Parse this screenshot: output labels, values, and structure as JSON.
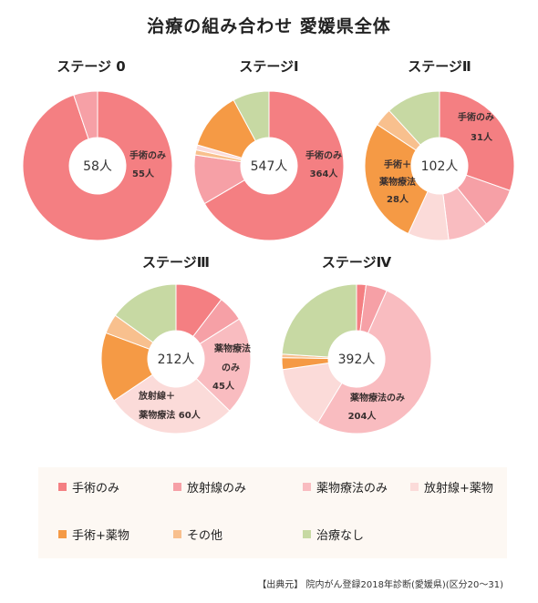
{
  "title": "治療の組み合わせ 愛媛県全体",
  "colors": {
    "手術のみ": "#f47f82",
    "放射線のみ": "#f6a0a6",
    "薬物療法のみ": "#f9bcc0",
    "放射線+薬物": "#fbdbd9",
    "手術+薬物": "#f59a45",
    "その他": "#f8c08e",
    "治療なし": "#c7d9a3"
  },
  "legend": [
    {
      "key": "手術のみ",
      "label": "手術のみ"
    },
    {
      "key": "放射線のみ",
      "label": "放射線のみ"
    },
    {
      "key": "薬物療法のみ",
      "label": "薬物療法のみ"
    },
    {
      "key": "放射線+薬物",
      "label": "放射線+薬物"
    },
    {
      "key": "手術+薬物",
      "label": "手術+薬物"
    },
    {
      "key": "その他",
      "label": "その他"
    },
    {
      "key": "治療なし",
      "label": "治療なし"
    }
  ],
  "source": "【出典元】 院内がん登録2018年診断(愛媛県)(区分20～31)",
  "chart_data": [
    {
      "type": "pie",
      "title": "ステージ 0",
      "total_label": "58人",
      "slices": [
        {
          "key": "手術のみ",
          "value": 55
        },
        {
          "key": "治療なし",
          "value": 0
        },
        {
          "key": "その他",
          "value": 0
        },
        {
          "key": "手術+薬物",
          "value": 0
        },
        {
          "key": "放射線+薬物",
          "value": 0
        },
        {
          "key": "薬物療法のみ",
          "value": 0
        },
        {
          "key": "放射線のみ",
          "value": 3
        }
      ],
      "annotations": [
        "手術のみ",
        "55人"
      ]
    },
    {
      "type": "pie",
      "title": "ステージⅠ",
      "total_label": "547人",
      "slices": [
        {
          "key": "手術のみ",
          "value": 364
        },
        {
          "key": "治療なし",
          "value": 0
        },
        {
          "key": "その他",
          "value": 0
        },
        {
          "key": "手術+薬物",
          "value": 0
        },
        {
          "key": "放射線+薬物",
          "value": 0
        },
        {
          "key": "薬物療法のみ",
          "value": 0
        },
        {
          "key": "放射線のみ",
          "value": 59
        },
        {
          "key": "放射線+薬物",
          "value": 6
        },
        {
          "key": "薬物療法のみ",
          "value": 6
        },
        {
          "key": "手術+薬物",
          "value": 69
        },
        {
          "key": "治療なし",
          "value": 43
        }
      ],
      "annotations": [
        "手術のみ",
        "364人"
      ]
    },
    {
      "type": "pie",
      "title": "ステージⅡ",
      "total_label": "102人",
      "slices": [
        {
          "key": "手術のみ",
          "value": 31
        },
        {
          "key": "放射線のみ",
          "value": 9
        },
        {
          "key": "薬物療法のみ",
          "value": 9
        },
        {
          "key": "放射線+薬物",
          "value": 9
        },
        {
          "key": "手術+薬物",
          "value": 28
        },
        {
          "key": "その他",
          "value": 4
        },
        {
          "key": "治療なし",
          "value": 12
        }
      ],
      "annotations": [
        "手術のみ",
        "31人",
        "手術＋",
        "薬物療法",
        "28人"
      ]
    },
    {
      "type": "pie",
      "title": "ステージⅢ",
      "total_label": "212人",
      "slices": [
        {
          "key": "手術のみ",
          "value": 22
        },
        {
          "key": "放射線のみ",
          "value": 12
        },
        {
          "key": "薬物療法のみ",
          "value": 45
        },
        {
          "key": "放射線+薬物",
          "value": 60
        },
        {
          "key": "手術+薬物",
          "value": 32
        },
        {
          "key": "その他",
          "value": 9
        },
        {
          "key": "治療なし",
          "value": 32
        }
      ],
      "annotations": [
        "薬物療法",
        "のみ",
        "45人",
        "放射線＋",
        "薬物療法 60人"
      ]
    },
    {
      "type": "pie",
      "title": "ステージⅣ",
      "total_label": "392人",
      "slices": [
        {
          "key": "手術のみ",
          "value": 8
        },
        {
          "key": "放射線のみ",
          "value": 18
        },
        {
          "key": "薬物療法のみ",
          "value": 204
        },
        {
          "key": "放射線+薬物",
          "value": 55
        },
        {
          "key": "手術+薬物",
          "value": 10
        },
        {
          "key": "その他",
          "value": 3
        },
        {
          "key": "治療なし",
          "value": 94
        }
      ],
      "annotations": [
        "薬物療法のみ",
        "204人"
      ]
    }
  ]
}
